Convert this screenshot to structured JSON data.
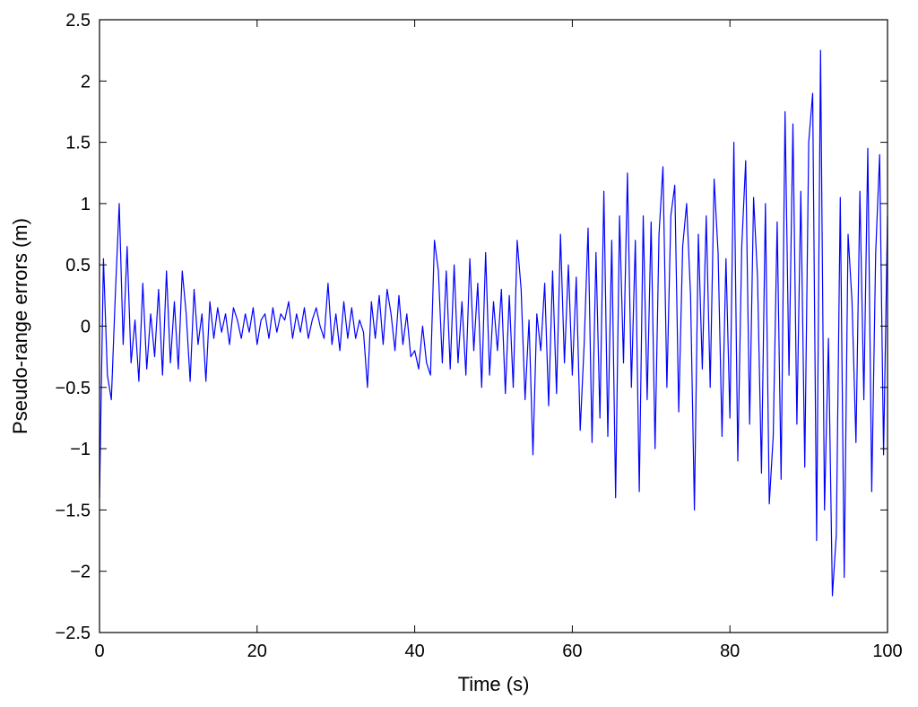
{
  "chart_data": {
    "type": "line",
    "title": "",
    "xlabel": "Time (s)",
    "ylabel": "Pseudo-range errors (m)",
    "xlim": [
      0,
      100
    ],
    "ylim": [
      -2.5,
      2.5
    ],
    "xticks": [
      0,
      20,
      40,
      60,
      80,
      100
    ],
    "xtick_labels": [
      "0",
      "20",
      "40",
      "60",
      "80",
      "100"
    ],
    "yticks": [
      -2.5,
      -2,
      -1.5,
      -1,
      -0.5,
      0,
      0.5,
      1,
      1.5,
      2,
      2.5
    ],
    "ytick_labels": [
      "−2.5",
      "−2",
      "−1.5",
      "−1",
      "−0.5",
      "0",
      "0.5",
      "1",
      "1.5",
      "2",
      "2.5"
    ],
    "grid": false,
    "line_color": "#0000ff",
    "series": [
      {
        "x": [
          0,
          0.5,
          1,
          1.5,
          2,
          2.5,
          3,
          3.5,
          4,
          4.5,
          5,
          5.5,
          6,
          6.5,
          7,
          7.5,
          8,
          8.5,
          9,
          9.5,
          10,
          10.5,
          11,
          11.5,
          12,
          12.5,
          13,
          13.5,
          14,
          14.5,
          15,
          15.5,
          16,
          16.5,
          17,
          17.5,
          18,
          18.5,
          19,
          19.5,
          20,
          20.5,
          21,
          21.5,
          22,
          22.5,
          23,
          23.5,
          24,
          24.5,
          25,
          25.5,
          26,
          26.5,
          27,
          27.5,
          28,
          28.5,
          29,
          29.5,
          30,
          30.5,
          31,
          31.5,
          32,
          32.5,
          33,
          33.5,
          34,
          34.5,
          35,
          35.5,
          36,
          36.5,
          37,
          37.5,
          38,
          38.5,
          39,
          39.5,
          40,
          40.5,
          41,
          41.5,
          42,
          42.5,
          43,
          43.5,
          44,
          44.5,
          45,
          45.5,
          46,
          46.5,
          47,
          47.5,
          48,
          48.5,
          49,
          49.5,
          50,
          50.5,
          51,
          51.5,
          52,
          52.5,
          53,
          53.5,
          54,
          54.5,
          55,
          55.5,
          56,
          56.5,
          57,
          57.5,
          58,
          58.5,
          59,
          59.5,
          60,
          60.5,
          61,
          61.5,
          62,
          62.5,
          63,
          63.5,
          64,
          64.5,
          65,
          65.5,
          66,
          66.5,
          67,
          67.5,
          68,
          68.5,
          69,
          69.5,
          70,
          70.5,
          71,
          71.5,
          72,
          72.5,
          73,
          73.5,
          74,
          74.5,
          75,
          75.5,
          76,
          76.5,
          77,
          77.5,
          78,
          78.5,
          79,
          79.5,
          80,
          80.5,
          81,
          81.5,
          82,
          82.5,
          83,
          83.5,
          84,
          84.5,
          85,
          85.5,
          86,
          86.5,
          87,
          87.5,
          88,
          88.5,
          89,
          89.5,
          90,
          90.5,
          91,
          91.5,
          92,
          92.5,
          93,
          93.5,
          94,
          94.5,
          95,
          95.5,
          96,
          96.5,
          97,
          97.5,
          98,
          98.5,
          99,
          99.5,
          100
        ],
        "y": [
          -1.4,
          0.55,
          -0.4,
          -0.6,
          0.25,
          1.0,
          -0.15,
          0.65,
          -0.3,
          0.05,
          -0.45,
          0.35,
          -0.35,
          0.1,
          -0.25,
          0.3,
          -0.4,
          0.45,
          -0.3,
          0.2,
          -0.35,
          0.45,
          0.1,
          -0.45,
          0.3,
          -0.15,
          0.1,
          -0.45,
          0.2,
          -0.1,
          0.15,
          -0.05,
          0.1,
          -0.15,
          0.15,
          0.05,
          -0.1,
          0.1,
          -0.05,
          0.15,
          -0.15,
          0.05,
          0.1,
          -0.1,
          0.15,
          -0.05,
          0.1,
          0.05,
          0.2,
          -0.1,
          0.1,
          -0.05,
          0.15,
          -0.1,
          0.05,
          0.15,
          0.0,
          -0.1,
          0.35,
          -0.15,
          0.1,
          -0.2,
          0.2,
          -0.1,
          0.15,
          -0.1,
          0.05,
          -0.05,
          -0.5,
          0.2,
          -0.1,
          0.25,
          -0.15,
          0.3,
          0.1,
          -0.2,
          0.25,
          -0.15,
          0.1,
          -0.25,
          -0.2,
          -0.35,
          0.0,
          -0.3,
          -0.4,
          0.7,
          0.45,
          -0.3,
          0.45,
          -0.35,
          0.5,
          -0.3,
          0.2,
          -0.4,
          0.55,
          -0.2,
          0.35,
          -0.5,
          0.6,
          -0.4,
          0.2,
          -0.2,
          0.3,
          -0.55,
          0.25,
          -0.5,
          0.7,
          0.3,
          -0.6,
          0.05,
          -1.05,
          0.1,
          -0.2,
          0.35,
          -0.65,
          0.45,
          -0.55,
          0.75,
          -0.3,
          0.5,
          -0.4,
          0.4,
          -0.85,
          -0.15,
          0.8,
          -0.95,
          0.6,
          -0.75,
          1.1,
          -0.9,
          0.7,
          -1.4,
          0.9,
          -0.3,
          1.25,
          -0.5,
          0.7,
          -1.35,
          0.9,
          -0.6,
          0.85,
          -1.0,
          0.75,
          1.3,
          -0.5,
          0.9,
          1.15,
          -0.7,
          0.65,
          1.0,
          0.25,
          -1.5,
          0.75,
          -0.35,
          0.9,
          -0.5,
          1.2,
          0.6,
          -0.9,
          0.55,
          -0.75,
          1.5,
          -1.1,
          0.65,
          1.35,
          -0.8,
          1.05,
          0.4,
          -1.2,
          1.0,
          -1.45,
          -0.9,
          0.85,
          -1.25,
          1.75,
          -0.4,
          1.65,
          -0.8,
          1.1,
          -1.15,
          1.5,
          1.9,
          -1.75,
          2.25,
          -1.5,
          -0.1,
          -2.2,
          -1.7,
          1.05,
          -2.05,
          0.75,
          0.2,
          -0.95,
          1.1,
          -0.6,
          1.45,
          -1.35,
          0.6,
          1.4,
          -1.05,
          0.9
        ]
      }
    ]
  }
}
